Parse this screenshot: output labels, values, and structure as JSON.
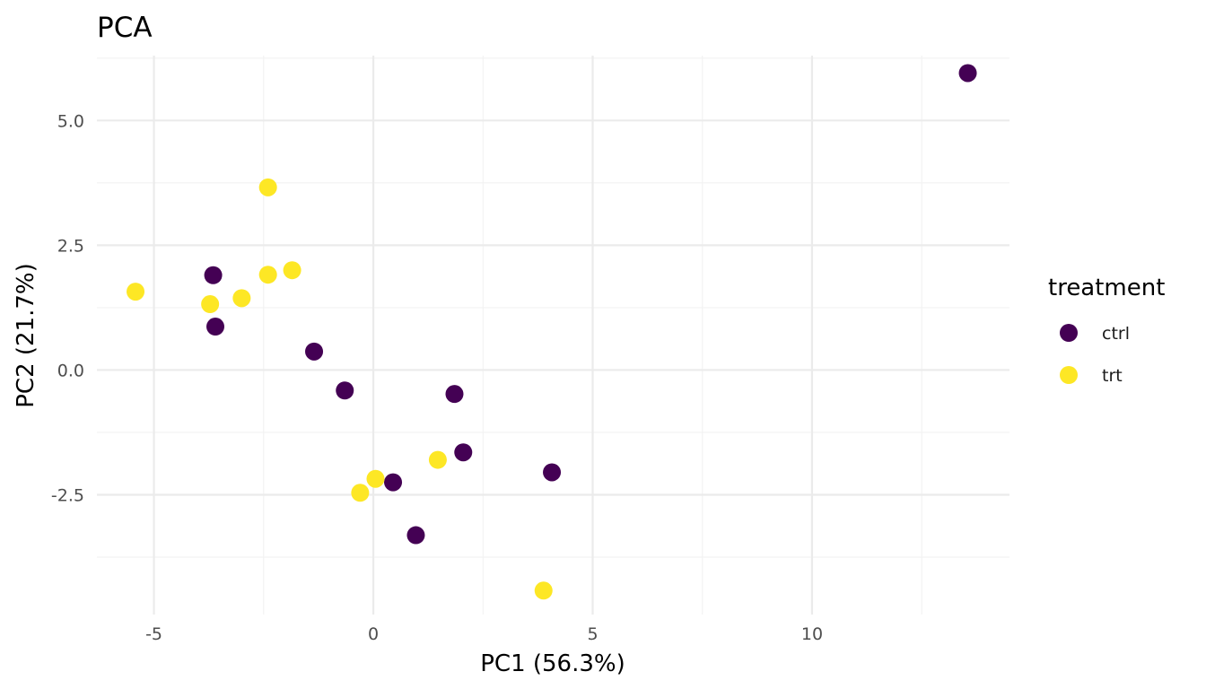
{
  "chart_data": {
    "type": "scatter",
    "title": "PCA",
    "xlabel": "PC1 (56.3%)",
    "ylabel": "PC2 (21.7%)",
    "xlim": [
      -6.3,
      14.5
    ],
    "ylim": [
      -4.9,
      6.3
    ],
    "x_ticks": [
      -5,
      0,
      5,
      10
    ],
    "x_tick_labels": [
      "-5",
      "0",
      "5",
      "10"
    ],
    "y_ticks": [
      -2.5,
      0,
      2.5,
      5
    ],
    "y_tick_labels": [
      "-2.5",
      "0.0",
      "2.5",
      "5.0"
    ],
    "grid": true,
    "legend": {
      "title": "treatment",
      "position": "right"
    },
    "series": [
      {
        "name": "ctrl",
        "color": "#440154",
        "points": [
          {
            "x": 13.55,
            "y": 5.95
          },
          {
            "x": -3.65,
            "y": 1.9
          },
          {
            "x": -3.6,
            "y": 0.87
          },
          {
            "x": -1.35,
            "y": 0.37
          },
          {
            "x": -0.65,
            "y": -0.41
          },
          {
            "x": 1.85,
            "y": -0.48
          },
          {
            "x": 2.05,
            "y": -1.65
          },
          {
            "x": 4.07,
            "y": -2.05
          },
          {
            "x": 0.45,
            "y": -2.25
          },
          {
            "x": 0.97,
            "y": -3.31
          }
        ]
      },
      {
        "name": "trt",
        "color": "#FDE725",
        "points": [
          {
            "x": -2.4,
            "y": 3.66
          },
          {
            "x": -5.42,
            "y": 1.57
          },
          {
            "x": -3.72,
            "y": 1.32
          },
          {
            "x": -3.0,
            "y": 1.44
          },
          {
            "x": -2.4,
            "y": 1.91
          },
          {
            "x": -1.85,
            "y": 2.0
          },
          {
            "x": 0.05,
            "y": -2.18
          },
          {
            "x": -0.3,
            "y": -2.46
          },
          {
            "x": 1.47,
            "y": -1.8
          },
          {
            "x": 3.88,
            "y": -4.42
          }
        ]
      }
    ]
  }
}
